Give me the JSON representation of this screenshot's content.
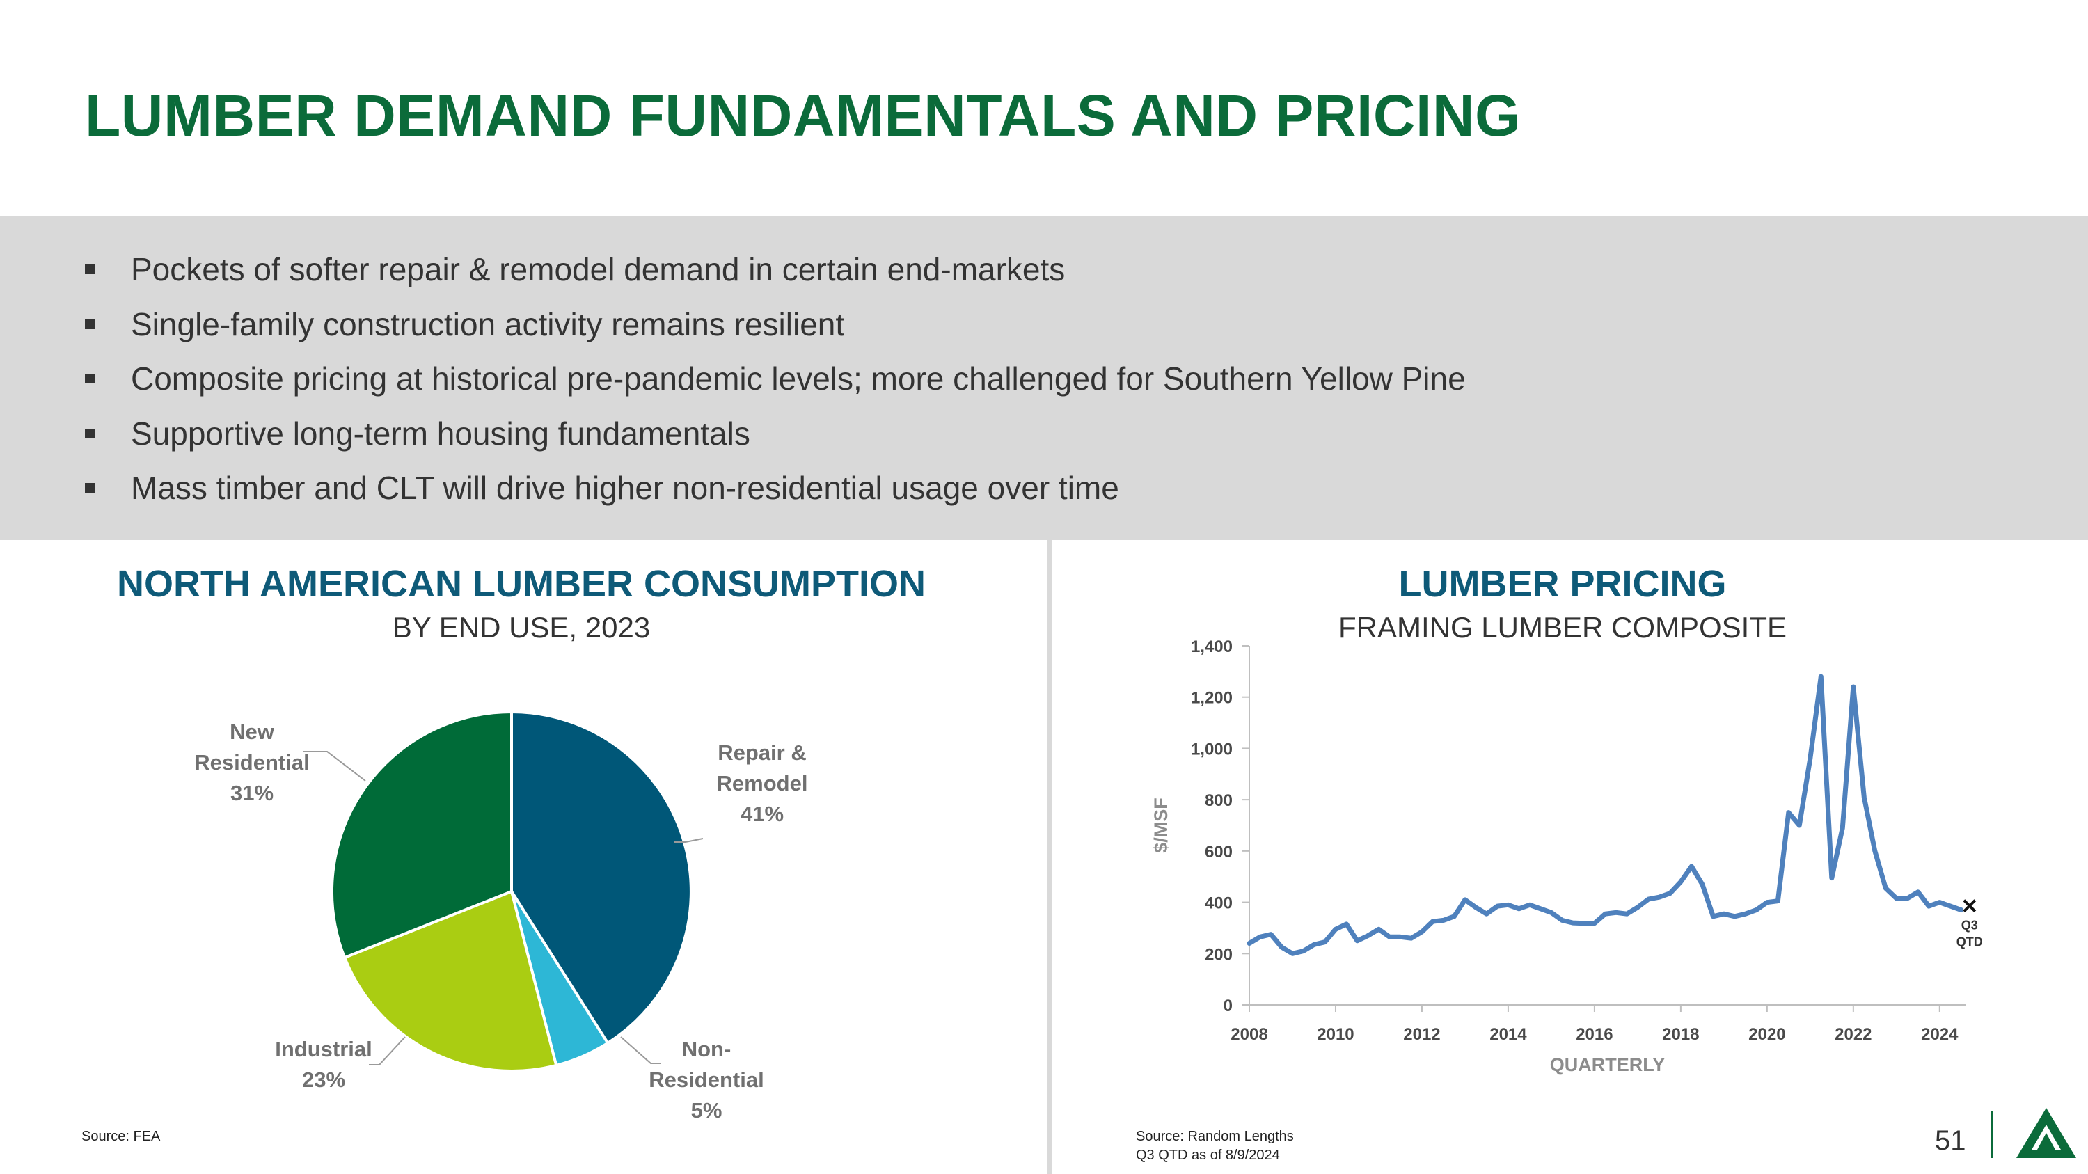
{
  "slide": {
    "title": "LUMBER DEMAND FUNDAMENTALS AND PRICING",
    "bullets": [
      "Pockets of softer repair & remodel demand in certain end-markets",
      "Single-family construction activity remains resilient",
      "Composite pricing at historical pre-pandemic levels; more challenged for Southern Yellow Pine",
      "Supportive long-term housing fundamentals",
      "Mass timber and CLT will drive higher non-residential usage over time"
    ],
    "page_number": "51",
    "colors": {
      "title_green": "#0b6b3a",
      "panel_title_blue": "#0e5a78",
      "band_gray": "#d9d9d9"
    }
  },
  "left_panel": {
    "title": "NORTH AMERICAN LUMBER CONSUMPTION",
    "subtitle": "BY END USE, 2023",
    "source": "Source: FEA"
  },
  "right_panel": {
    "title": "LUMBER PRICING",
    "subtitle": "FRAMING LUMBER COMPOSITE",
    "source_line1": "Source: Random Lengths",
    "source_line2": "Q3 QTD as of 8/9/2024"
  },
  "chart_data": [
    {
      "type": "pie",
      "slices": [
        {
          "label_lines": [
            "Repair &",
            "Remodel",
            "41%"
          ],
          "label": "Repair & Remodel",
          "value": 41,
          "color": "#005778"
        },
        {
          "label_lines": [
            "Non-",
            "Residential",
            "5%"
          ],
          "label": "Non-Residential",
          "value": 5,
          "color": "#2db7d6"
        },
        {
          "label_lines": [
            "Industrial",
            "23%"
          ],
          "label": "Industrial",
          "value": 23,
          "color": "#aacd12"
        },
        {
          "label_lines": [
            "New",
            "Residential",
            "31%"
          ],
          "label": "New Residential",
          "value": 31,
          "color": "#006b38"
        }
      ]
    },
    {
      "type": "line",
      "ylabel": "$/MSF",
      "xlabel": "QUARTERLY",
      "ylim": [
        0,
        1400
      ],
      "yticks": [
        "0",
        "200",
        "400",
        "600",
        "800",
        "1,000",
        "1,200",
        "1,400"
      ],
      "xlim": [
        2008,
        2024.6
      ],
      "xticks": [
        "2008",
        "2010",
        "2012",
        "2014",
        "2016",
        "2018",
        "2020",
        "2022",
        "2024"
      ],
      "grid": false,
      "line_color": "#4f81bd",
      "marker_label_lines": [
        "Q3",
        "QTD"
      ],
      "marker": {
        "x": 2024.5,
        "y": 370
      },
      "x": [
        2008.0,
        2008.25,
        2008.5,
        2008.75,
        2009.0,
        2009.25,
        2009.5,
        2009.75,
        2010.0,
        2010.25,
        2010.5,
        2010.75,
        2011.0,
        2011.25,
        2011.5,
        2011.75,
        2012.0,
        2012.25,
        2012.5,
        2012.75,
        2013.0,
        2013.25,
        2013.5,
        2013.75,
        2014.0,
        2014.25,
        2014.5,
        2014.75,
        2015.0,
        2015.25,
        2015.5,
        2015.75,
        2016.0,
        2016.25,
        2016.5,
        2016.75,
        2017.0,
        2017.25,
        2017.5,
        2017.75,
        2018.0,
        2018.25,
        2018.5,
        2018.75,
        2019.0,
        2019.25,
        2019.5,
        2019.75,
        2020.0,
        2020.25,
        2020.5,
        2020.75,
        2021.0,
        2021.25,
        2021.5,
        2021.75,
        2022.0,
        2022.25,
        2022.5,
        2022.75,
        2023.0,
        2023.25,
        2023.5,
        2023.75,
        2024.0,
        2024.25,
        2024.5
      ],
      "y": [
        240,
        265,
        275,
        225,
        200,
        210,
        235,
        245,
        295,
        315,
        250,
        270,
        295,
        265,
        265,
        260,
        285,
        325,
        330,
        345,
        410,
        380,
        355,
        385,
        390,
        375,
        390,
        375,
        360,
        330,
        320,
        318,
        318,
        355,
        360,
        355,
        380,
        412,
        420,
        435,
        480,
        540,
        470,
        345,
        355,
        345,
        355,
        370,
        400,
        405,
        750,
        700,
        960,
        1280,
        495,
        690,
        1240,
        810,
        600,
        455,
        415,
        415,
        440,
        385,
        400,
        385,
        370
      ]
    }
  ]
}
